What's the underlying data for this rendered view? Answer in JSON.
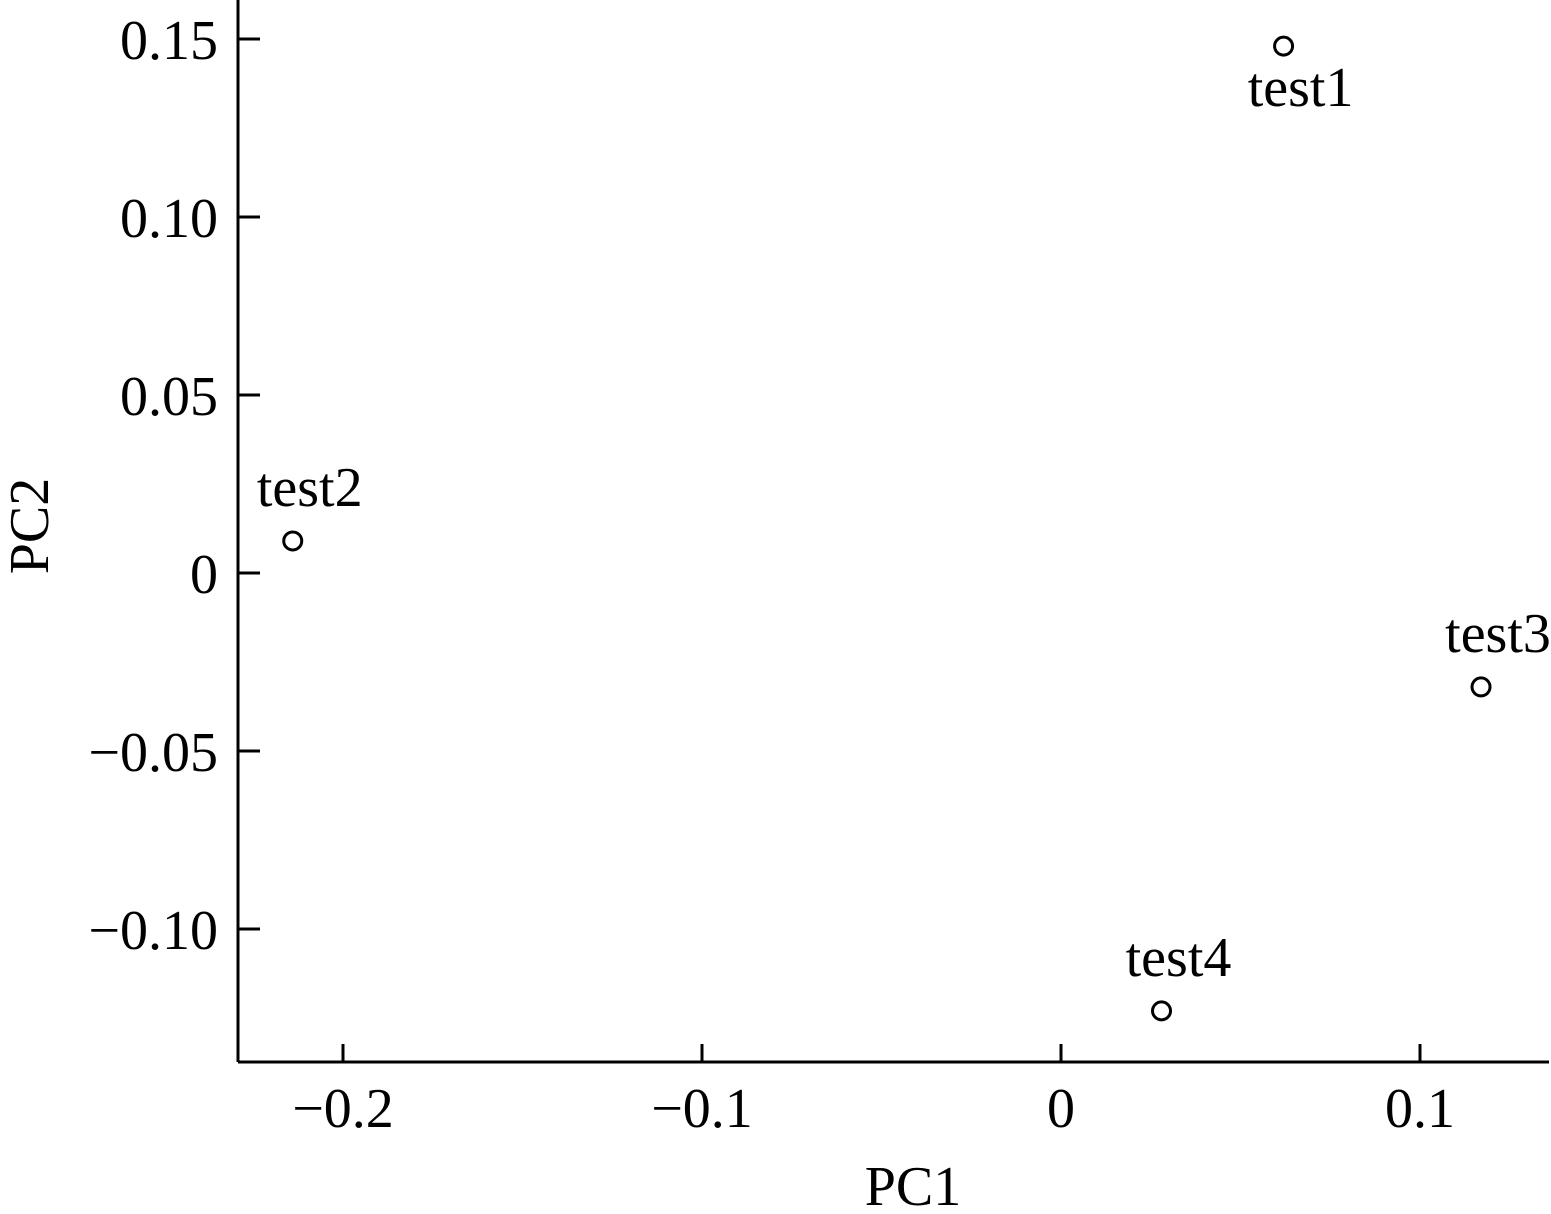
{
  "chart_data": {
    "type": "scatter",
    "title": "",
    "xlabel": "PC1",
    "ylabel": "PC2",
    "xlim": [
      -0.229,
      0.136
    ],
    "ylim": [
      -0.136,
      0.16
    ],
    "grid": false,
    "legend": "none",
    "x_ticks": [
      -0.2,
      -0.1,
      0,
      0.1
    ],
    "x_tick_labels": [
      "−0.2",
      "−0.1",
      "0",
      "0.1"
    ],
    "y_ticks": [
      0.15,
      0.1,
      0.05,
      0,
      -0.05,
      -0.1
    ],
    "y_tick_labels": [
      "0.15",
      "0.10",
      "0.05",
      "0",
      "−0.05",
      "−0.10"
    ],
    "points": [
      {
        "label": "test1",
        "x": 0.062,
        "y": 0.148,
        "label_position": "below"
      },
      {
        "label": "test2",
        "x": -0.214,
        "y": 0.009,
        "label_position": "above"
      },
      {
        "label": "test3",
        "x": 0.117,
        "y": -0.032,
        "label_position": "above"
      },
      {
        "label": "test4",
        "x": 0.028,
        "y": -0.123,
        "label_position": "above"
      }
    ],
    "colors": {
      "axis": "#000000",
      "marker_stroke": "#000000",
      "marker_fill": "#ffffff",
      "text": "#000000"
    }
  }
}
